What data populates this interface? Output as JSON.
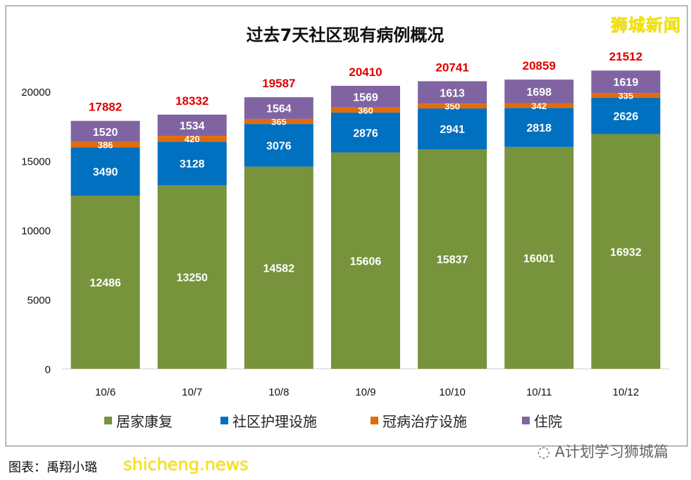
{
  "chart_data": {
    "type": "bar",
    "stacked": true,
    "title": "过去7天社区现有病例概况",
    "categories": [
      "10/6",
      "10/7",
      "10/8",
      "10/9",
      "10/10",
      "10/11",
      "10/12"
    ],
    "series": [
      {
        "name": "居家康复",
        "color": "#77933C",
        "values": [
          12486,
          13250,
          14582,
          15606,
          15837,
          16001,
          16932
        ]
      },
      {
        "name": "社区护理设施",
        "color": "#0070C0",
        "values": [
          3490,
          3128,
          3076,
          2876,
          2941,
          2818,
          2626
        ]
      },
      {
        "name": "冠病治疗设施",
        "color": "#E36C09",
        "values": [
          386,
          420,
          365,
          360,
          350,
          342,
          335
        ]
      },
      {
        "name": "住院",
        "color": "#8064A2",
        "values": [
          1520,
          1534,
          1564,
          1569,
          1613,
          1698,
          1619
        ]
      }
    ],
    "totals": [
      17882,
      18332,
      19587,
      20410,
      20741,
      20859,
      21512
    ],
    "total_label_color": "#E00000",
    "yticks": [
      0,
      5000,
      10000,
      15000,
      20000
    ],
    "ylim": [
      0,
      22000
    ],
    "grid": false,
    "legend_position": "bottom"
  },
  "watermarks": {
    "top": "狮城新闻",
    "wechat": "A计划学习狮城篇",
    "site": "shicheng.news"
  },
  "credit": "图表：禹翔小璐"
}
